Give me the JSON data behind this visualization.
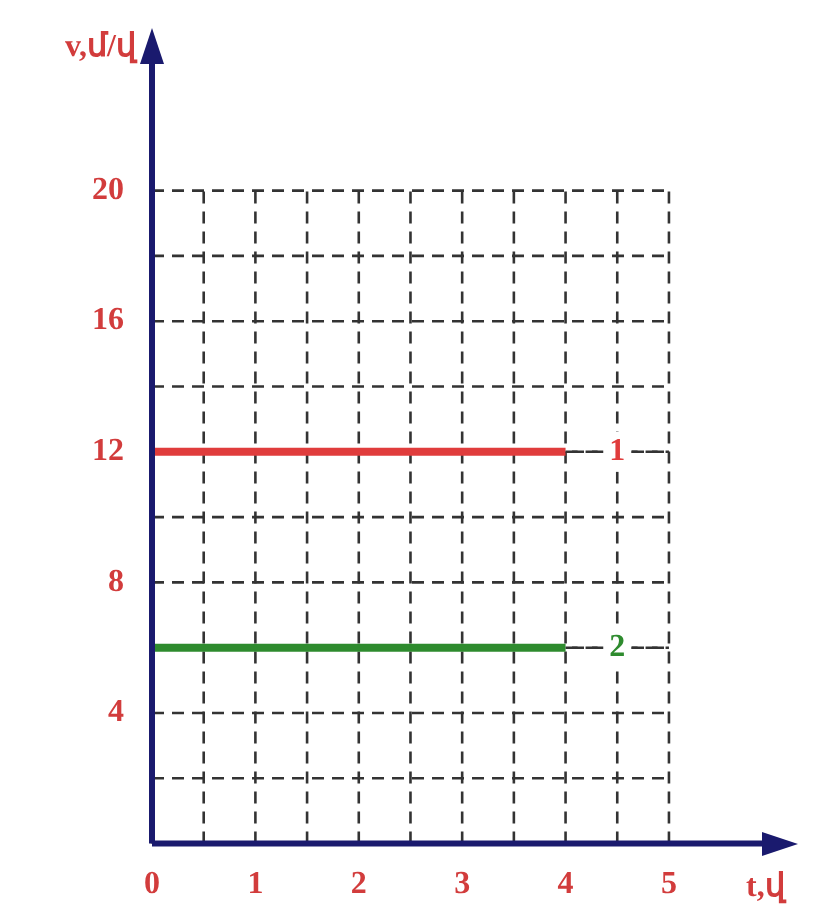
{
  "chart_data": {
    "type": "line",
    "xlabel": "t,վ",
    "ylabel": "v,մ/վ",
    "x": [
      0,
      4
    ],
    "series": [
      {
        "name": "1",
        "color": "#e03c3c",
        "values": [
          12,
          12
        ]
      },
      {
        "name": "2",
        "color": "#2e8b2e",
        "values": [
          6,
          6
        ]
      }
    ],
    "xlim": [
      0,
      5.9
    ],
    "ylim": [
      0,
      24
    ],
    "xticks": [
      0,
      {
        "value": 0.5,
        "label": null
      },
      1,
      {
        "value": 1.5,
        "label": null
      },
      2,
      {
        "value": 2.5,
        "label": null
      },
      3,
      {
        "value": 3.5,
        "label": null
      },
      4,
      {
        "value": 4.5,
        "label": null
      },
      5
    ],
    "yticks": [
      {
        "value": 2,
        "label": null
      },
      4,
      {
        "value": 6,
        "label": null
      },
      8,
      {
        "value": 10,
        "label": null
      },
      12,
      {
        "value": 14,
        "label": null
      },
      16,
      {
        "value": 18,
        "label": null
      },
      20
    ],
    "grid": true,
    "legend": false,
    "marker": "none",
    "line_style": "solid"
  }
}
